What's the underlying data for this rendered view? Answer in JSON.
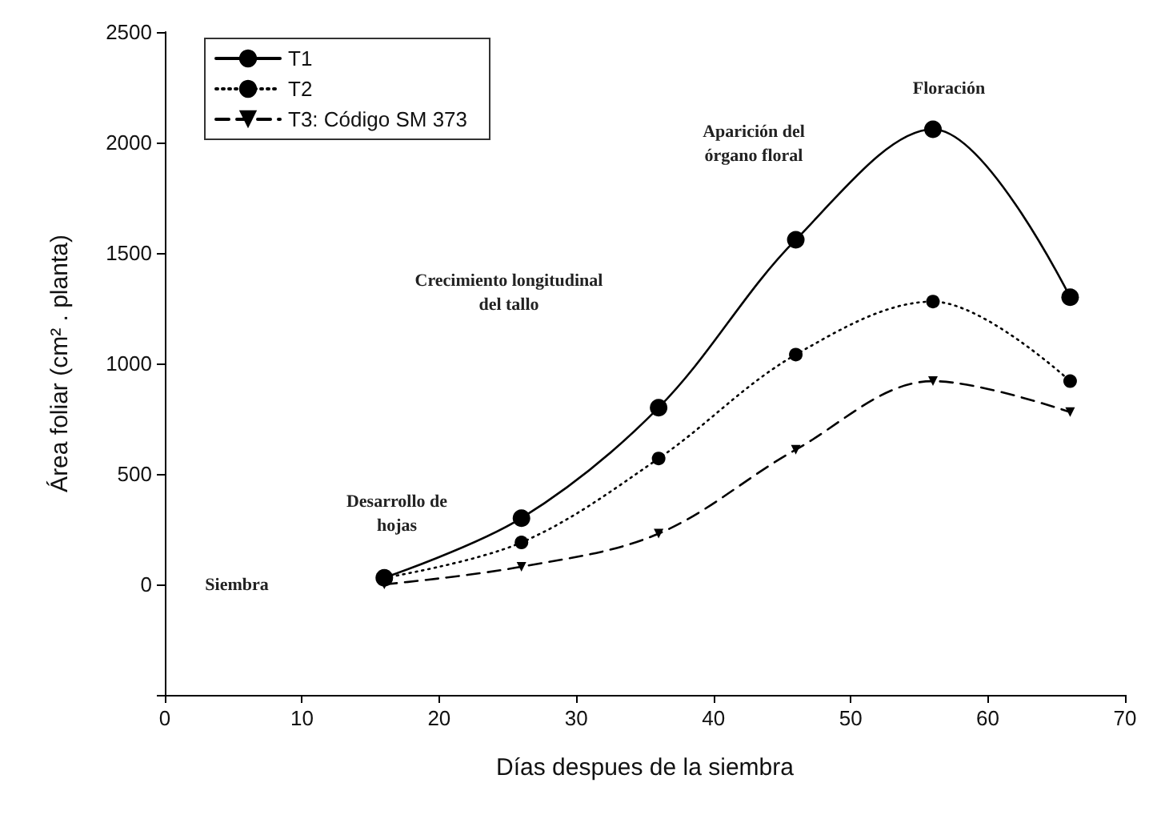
{
  "chart_data": {
    "type": "line",
    "xlabel": "Días despues de la siembra",
    "ylabel": "Área foliar (cm² . planta)",
    "x": [
      16,
      26,
      36,
      46,
      56,
      66
    ],
    "series": [
      {
        "name": "T1",
        "color": "#000000",
        "marker": "circle",
        "line_style": "solid",
        "values": [
          30,
          300,
          800,
          1560,
          2060,
          1300
        ]
      },
      {
        "name": "T2",
        "color": "#000000",
        "marker": "circle",
        "line_style": "dotted",
        "values": [
          30,
          190,
          570,
          1040,
          1280,
          920
        ]
      },
      {
        "name": "T3: Código SM 373",
        "color": "#000000",
        "marker": "triangle",
        "line_style": "dashed",
        "values": [
          0,
          80,
          230,
          610,
          920,
          780
        ]
      }
    ],
    "xlim": [
      0,
      70
    ],
    "xticks": [
      0,
      10,
      20,
      30,
      40,
      50,
      60,
      70
    ],
    "ylim": [
      -500,
      2500
    ],
    "yticks": [
      {
        "value": -500,
        "label": null
      },
      0,
      500,
      1000,
      1500,
      2000,
      2500
    ],
    "grid": false,
    "legend": "top left",
    "annotations": [
      "Siembra",
      "Desarrollo de hojas",
      "Crecimiento longitudinal del tallo",
      "Aparición del órgano floral",
      "Floración"
    ]
  }
}
